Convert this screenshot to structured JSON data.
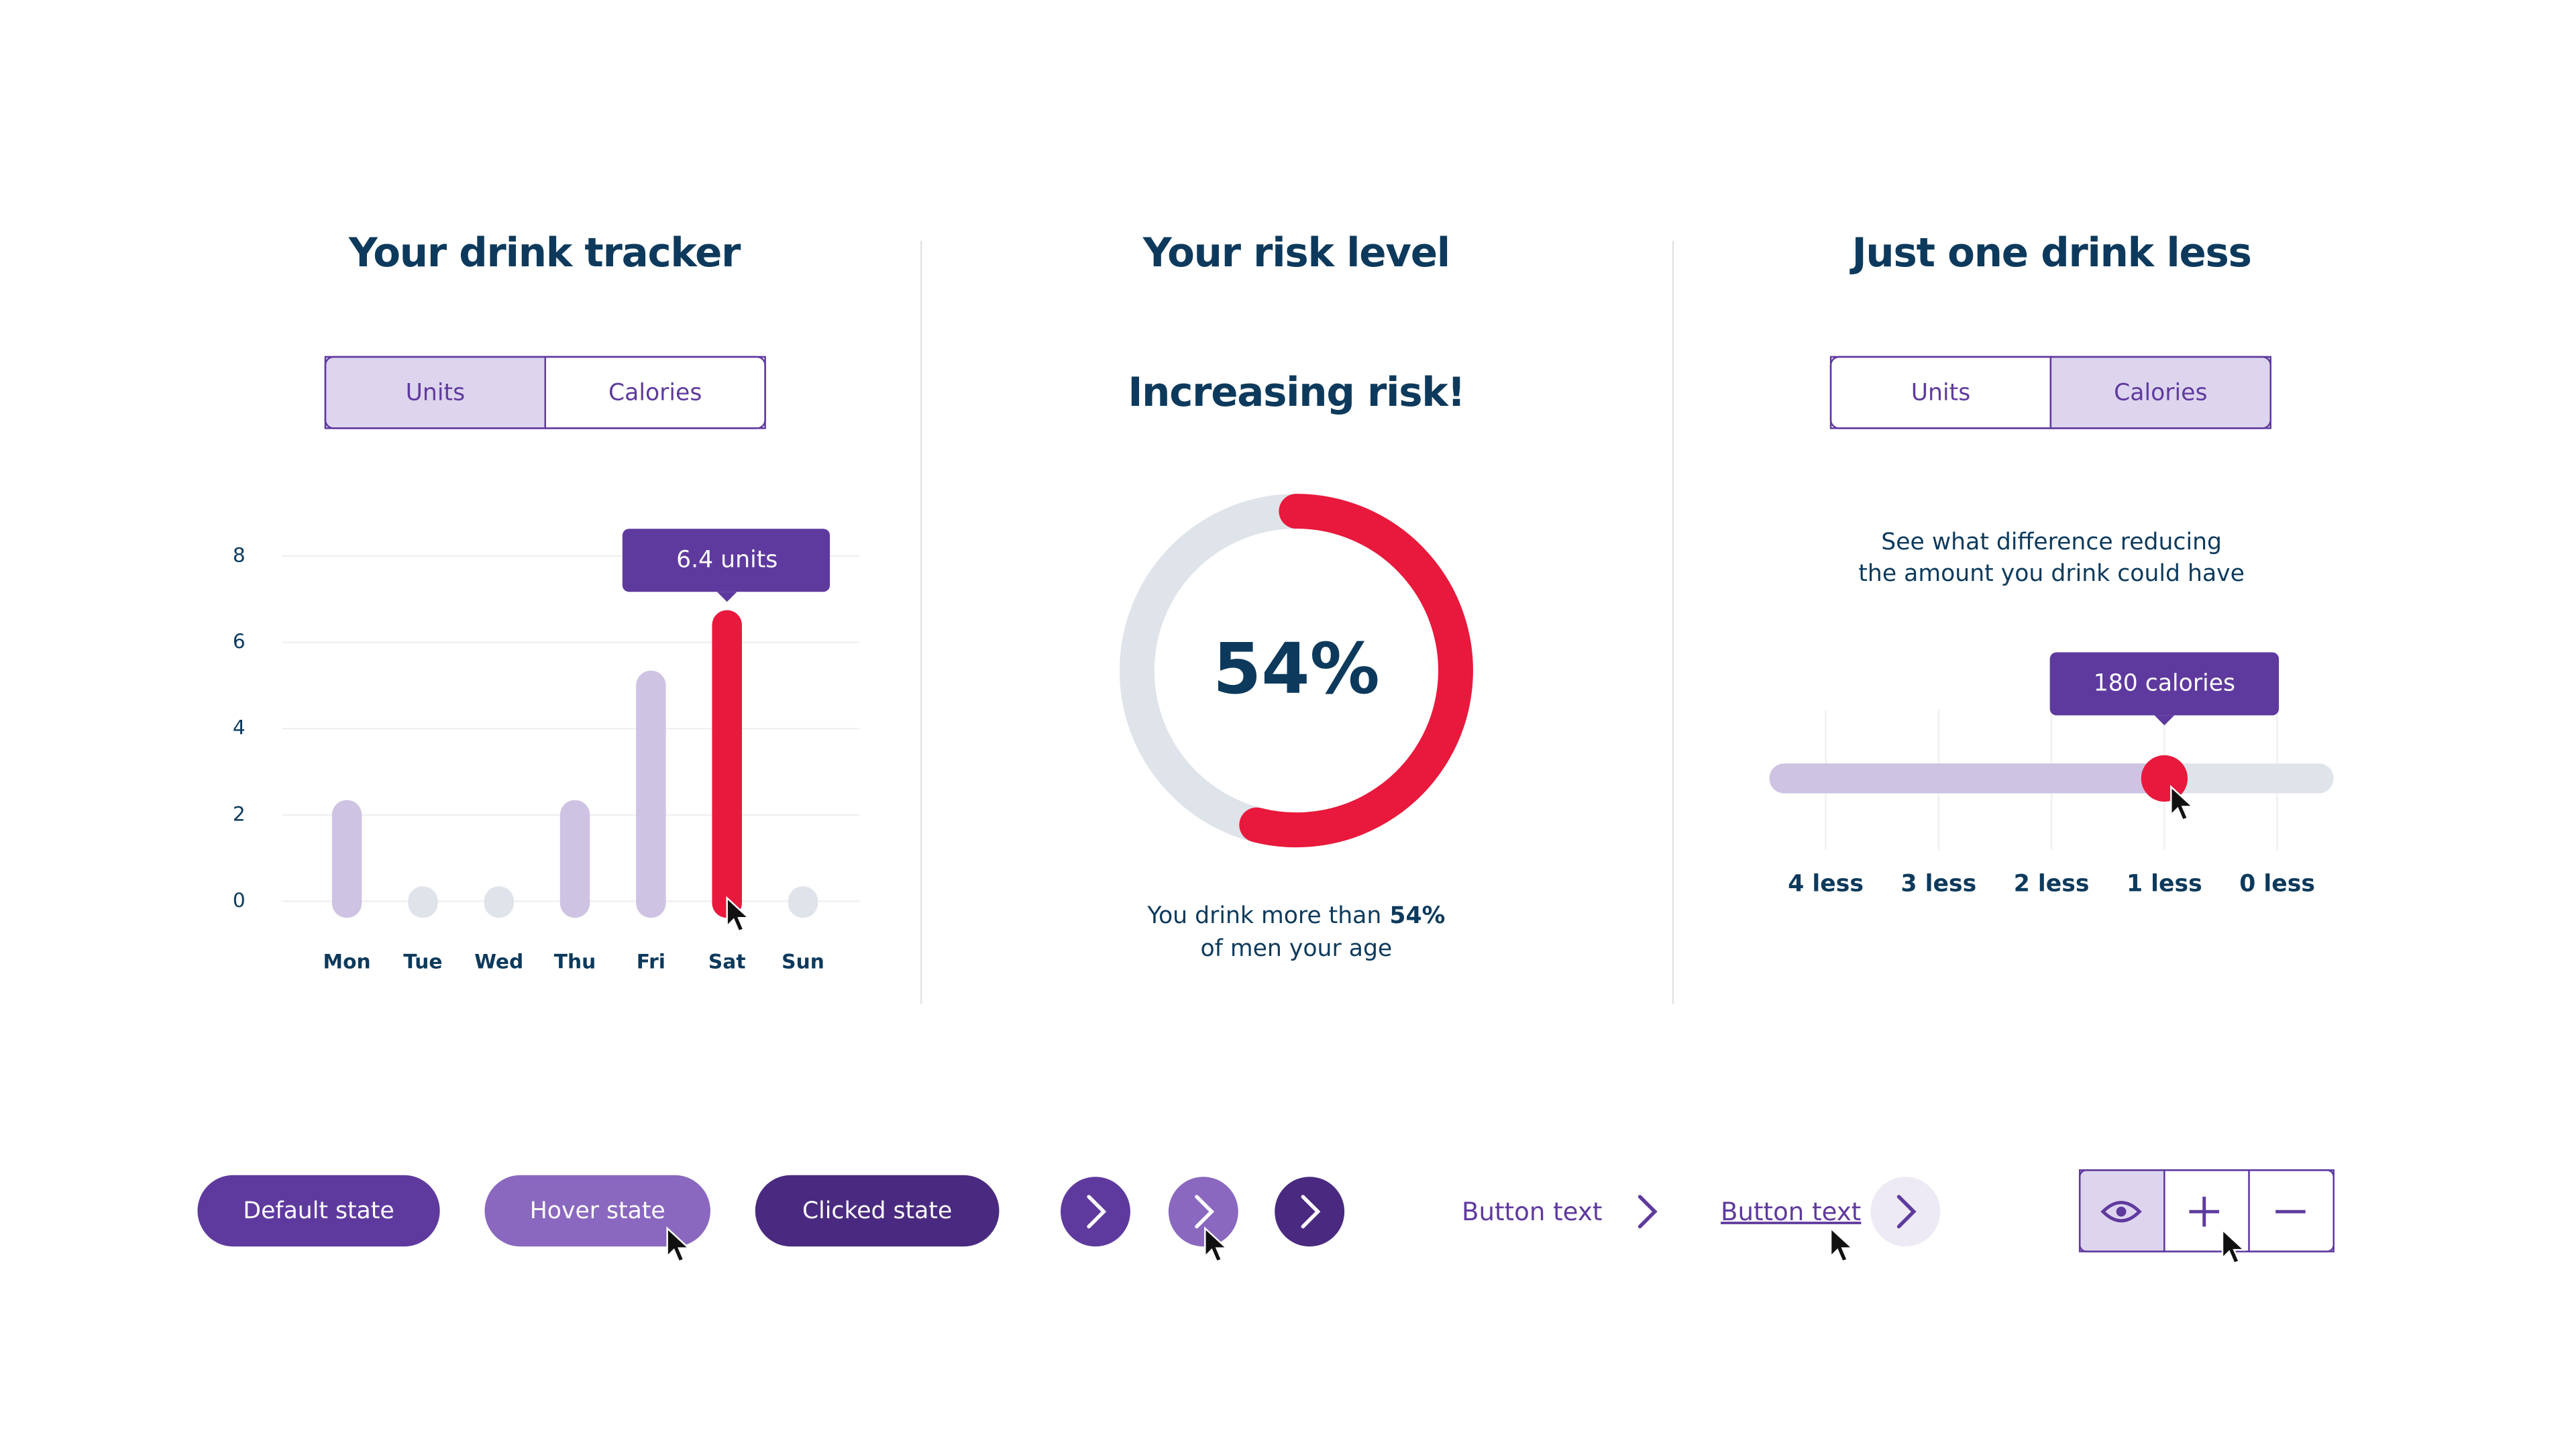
{
  "chart_data": {
    "type": "bar",
    "title": "Your drink tracker",
    "toggle": [
      "Units",
      "Calories"
    ],
    "toggle_active": 0,
    "categories": [
      "Mon",
      "Tue",
      "Wed",
      "Thu",
      "Fri",
      "Sat",
      "Sun"
    ],
    "values": [
      2,
      0,
      0,
      2,
      5,
      6.4,
      0
    ],
    "value_labels": [
      null,
      null,
      null,
      null,
      null,
      "6.4 units",
      null
    ],
    "colors": [
      "#cfc3e3",
      "#dfe3ea",
      "#dfe3ea",
      "#cfc3e3",
      "#cfc3e3",
      "#e8193c",
      "#dfe3ea"
    ],
    "ylim": [
      0,
      8
    ],
    "yticks": [
      0,
      2,
      4,
      6,
      8
    ],
    "grid": true
  },
  "risk": {
    "title": "Your risk level",
    "heading": "Increasing risk!",
    "value": 54,
    "value_label": "54%",
    "caption_pre": "You drink more than",
    "caption_bold": "54%",
    "caption_post": "of men your age"
  },
  "difference": {
    "title": "Just one drink less",
    "toggle": [
      "Units",
      "Calories"
    ],
    "toggle_active": 1,
    "text": [
      "See what difference reducing",
      "the amount you drink could have"
    ],
    "steps": [
      "4 less",
      "3 less",
      "2 less",
      "1 less",
      "0 less"
    ],
    "selected_index": 3,
    "tooltip": "180 calories"
  },
  "buttons": {
    "pills": [
      "Default state",
      "Hover state",
      "Clicked state"
    ],
    "links": [
      "Button text",
      "Button text"
    ]
  }
}
